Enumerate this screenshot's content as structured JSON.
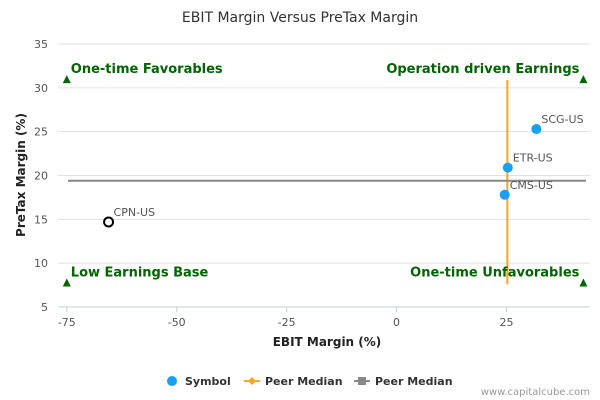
{
  "chart_data": {
    "type": "scatter",
    "title": "EBIT Margin Versus PreTax Margin",
    "xlabel": "EBIT Margin (%)",
    "ylabel": "PreTax Margin (%)",
    "xlim": [
      -77,
      44
    ],
    "ylim": [
      5,
      35
    ],
    "xticks": [
      -75,
      -50,
      -25,
      0,
      25
    ],
    "yticks": [
      5,
      10,
      15,
      20,
      25,
      30,
      35
    ],
    "grid": "horizontal",
    "points": [
      {
        "label": "SCG-US",
        "x": 31.8,
        "y": 25.3,
        "style": "filled",
        "color": "#1aa0f0"
      },
      {
        "label": "ETR-US",
        "x": 25.3,
        "y": 20.9,
        "style": "filled",
        "color": "#1aa0f0"
      },
      {
        "label": "CMS-US",
        "x": 24.6,
        "y": 17.8,
        "style": "filled",
        "color": "#1aa0f0"
      },
      {
        "label": "CPN-US",
        "x": -65.5,
        "y": 14.7,
        "style": "hollow",
        "color": "#000000"
      }
    ],
    "peer_median_x": 25.2,
    "peer_median_y": 19.4,
    "quadrants": [
      {
        "text": "One-time Favorables",
        "pos": "top-left"
      },
      {
        "text": "Operation driven Earnings",
        "pos": "top-right"
      },
      {
        "text": "Low Earnings Base",
        "pos": "bottom-left"
      },
      {
        "text": "One-time Unfavorables",
        "pos": "bottom-right"
      }
    ],
    "legend": {
      "placement": "bottom",
      "items": [
        {
          "text": "Symbol",
          "marker": "circle",
          "color": "#1aa0f0"
        },
        {
          "text": "Peer Median",
          "marker": "line-diamond",
          "color": "#f5a623"
        },
        {
          "text": "Peer Median",
          "marker": "line-square",
          "color": "#888888"
        }
      ]
    },
    "colors": {
      "quadrant_text": "#006400",
      "median_vertical": "#f5a623",
      "median_horizontal": "#888888",
      "grid": "#e0e0e0"
    }
  },
  "credit": "www.capitalcube.com"
}
